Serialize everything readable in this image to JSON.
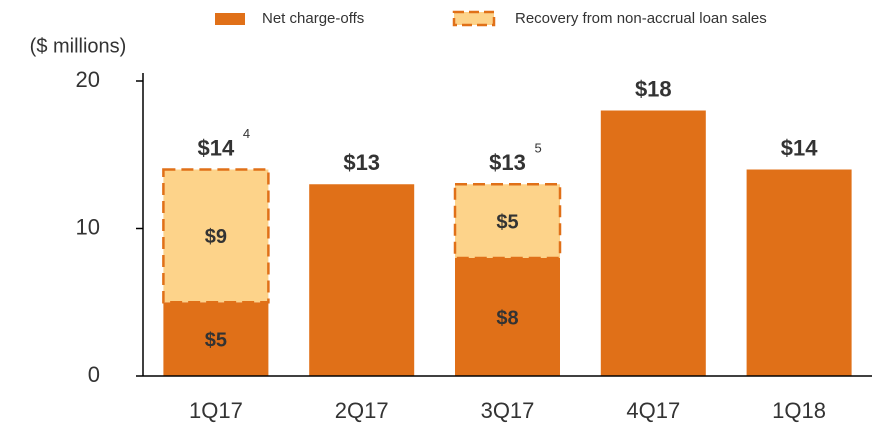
{
  "chart_data": {
    "type": "stacked-bar",
    "y_label": "($ millions)",
    "categories": [
      "1Q17",
      "2Q17",
      "3Q17",
      "4Q17",
      "1Q18"
    ],
    "series": [
      {
        "name": "Net charge-offs",
        "color": "#e07018",
        "values": [
          5,
          13,
          8,
          18,
          14
        ],
        "value_labels": [
          "$5",
          null,
          "$8",
          null,
          null
        ]
      },
      {
        "name": "Recovery from non-accrual loan sales",
        "color": "#fdd38a",
        "border": "#e07018",
        "values": [
          9,
          null,
          5,
          null,
          null
        ],
        "value_labels": [
          "$9",
          null,
          "$5",
          null,
          null
        ]
      }
    ],
    "totals": [
      14,
      13,
      13,
      18,
      14
    ],
    "total_labels": [
      "$14",
      "$13",
      "$13",
      "$18",
      "$14"
    ],
    "footnotes": [
      "4",
      null,
      "5",
      null,
      null
    ],
    "ylim": [
      0,
      20
    ],
    "yticks": [
      0,
      10,
      20
    ]
  }
}
